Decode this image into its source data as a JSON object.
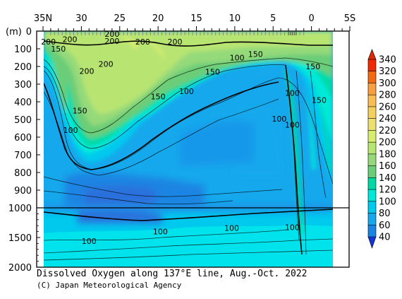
{
  "chart_data": {
    "type": "heatmap",
    "title": "Dissolved Oxygen along 137°E line, Aug.-Oct. 2022",
    "credit": "(C) Japan Meteorological Agency",
    "ylabel": "(m)",
    "x_ticks": [
      "35N",
      "30",
      "25",
      "20",
      "15",
      "10",
      "5",
      "0",
      "5S"
    ],
    "x_values": [
      35,
      30,
      25,
      20,
      15,
      10,
      5,
      0,
      -5
    ],
    "y_ticks": [
      "0",
      "100",
      "200",
      "300",
      "400",
      "500",
      "600",
      "700",
      "800",
      "900",
      "1000",
      "1500",
      "2000"
    ],
    "y_values": [
      0,
      100,
      200,
      300,
      400,
      500,
      600,
      700,
      800,
      900,
      1000,
      1500,
      2000
    ],
    "y_scale": "piecewise linear: 0-1000 m upper panel, 1000-2000 m compressed lower panel",
    "colorbar": {
      "labels": [
        "340",
        "320",
        "300",
        "280",
        "260",
        "240",
        "220",
        "200",
        "180",
        "160",
        "140",
        "120",
        "100",
        "80",
        "60",
        "40"
      ],
      "values": [
        340,
        320,
        300,
        280,
        260,
        240,
        220,
        200,
        180,
        160,
        140,
        120,
        100,
        80,
        60,
        40
      ],
      "colors": [
        "#ee2a00",
        "#f46a10",
        "#f8a040",
        "#f9bd55",
        "#f4d060",
        "#ede070",
        "#d8ec70",
        "#b8e472",
        "#94d97a",
        "#6ccd78",
        "#00d9a5",
        "#00e8d8",
        "#00c9ee",
        "#16a8ec",
        "#1a84e2"
      ],
      "bottom_arrow_color": "#1034d8",
      "top_arrow_color": "#e02800"
    },
    "contour_labels": [
      {
        "text": "200",
        "x": 34.3,
        "y": 60
      },
      {
        "text": "200",
        "x": 31.5,
        "y": 45
      },
      {
        "text": "200",
        "x": 26.0,
        "y": 15
      },
      {
        "text": "200",
        "x": 26.0,
        "y": 55
      },
      {
        "text": "200",
        "x": 22.0,
        "y": 60
      },
      {
        "text": "200",
        "x": 17.8,
        "y": 60
      },
      {
        "text": "150",
        "x": 33.0,
        "y": 100
      },
      {
        "text": "200",
        "x": 26.8,
        "y": 185
      },
      {
        "text": "200",
        "x": 29.3,
        "y": 225
      },
      {
        "text": "100",
        "x": 9.7,
        "y": 150
      },
      {
        "text": "150",
        "x": 7.3,
        "y": 130
      },
      {
        "text": "150",
        "x": 12.9,
        "y": 230
      },
      {
        "text": "150",
        "x": -0.2,
        "y": 200
      },
      {
        "text": "100",
        "x": 16.3,
        "y": 340
      },
      {
        "text": "150",
        "x": 20.0,
        "y": 370
      },
      {
        "text": "100",
        "x": 2.5,
        "y": 350
      },
      {
        "text": "150",
        "x": -1.0,
        "y": 390
      },
      {
        "text": "150",
        "x": 30.2,
        "y": 450
      },
      {
        "text": "100",
        "x": 4.2,
        "y": 495
      },
      {
        "text": "100",
        "x": 2.5,
        "y": 530
      },
      {
        "text": "100",
        "x": 31.4,
        "y": 560
      },
      {
        "text": "100",
        "x": 10.4,
        "y": 1340
      },
      {
        "text": "100",
        "x": 2.5,
        "y": 1330
      },
      {
        "text": "100",
        "x": 19.7,
        "y": 1400
      },
      {
        "text": "100",
        "x": 29.0,
        "y": 1560
      }
    ]
  }
}
